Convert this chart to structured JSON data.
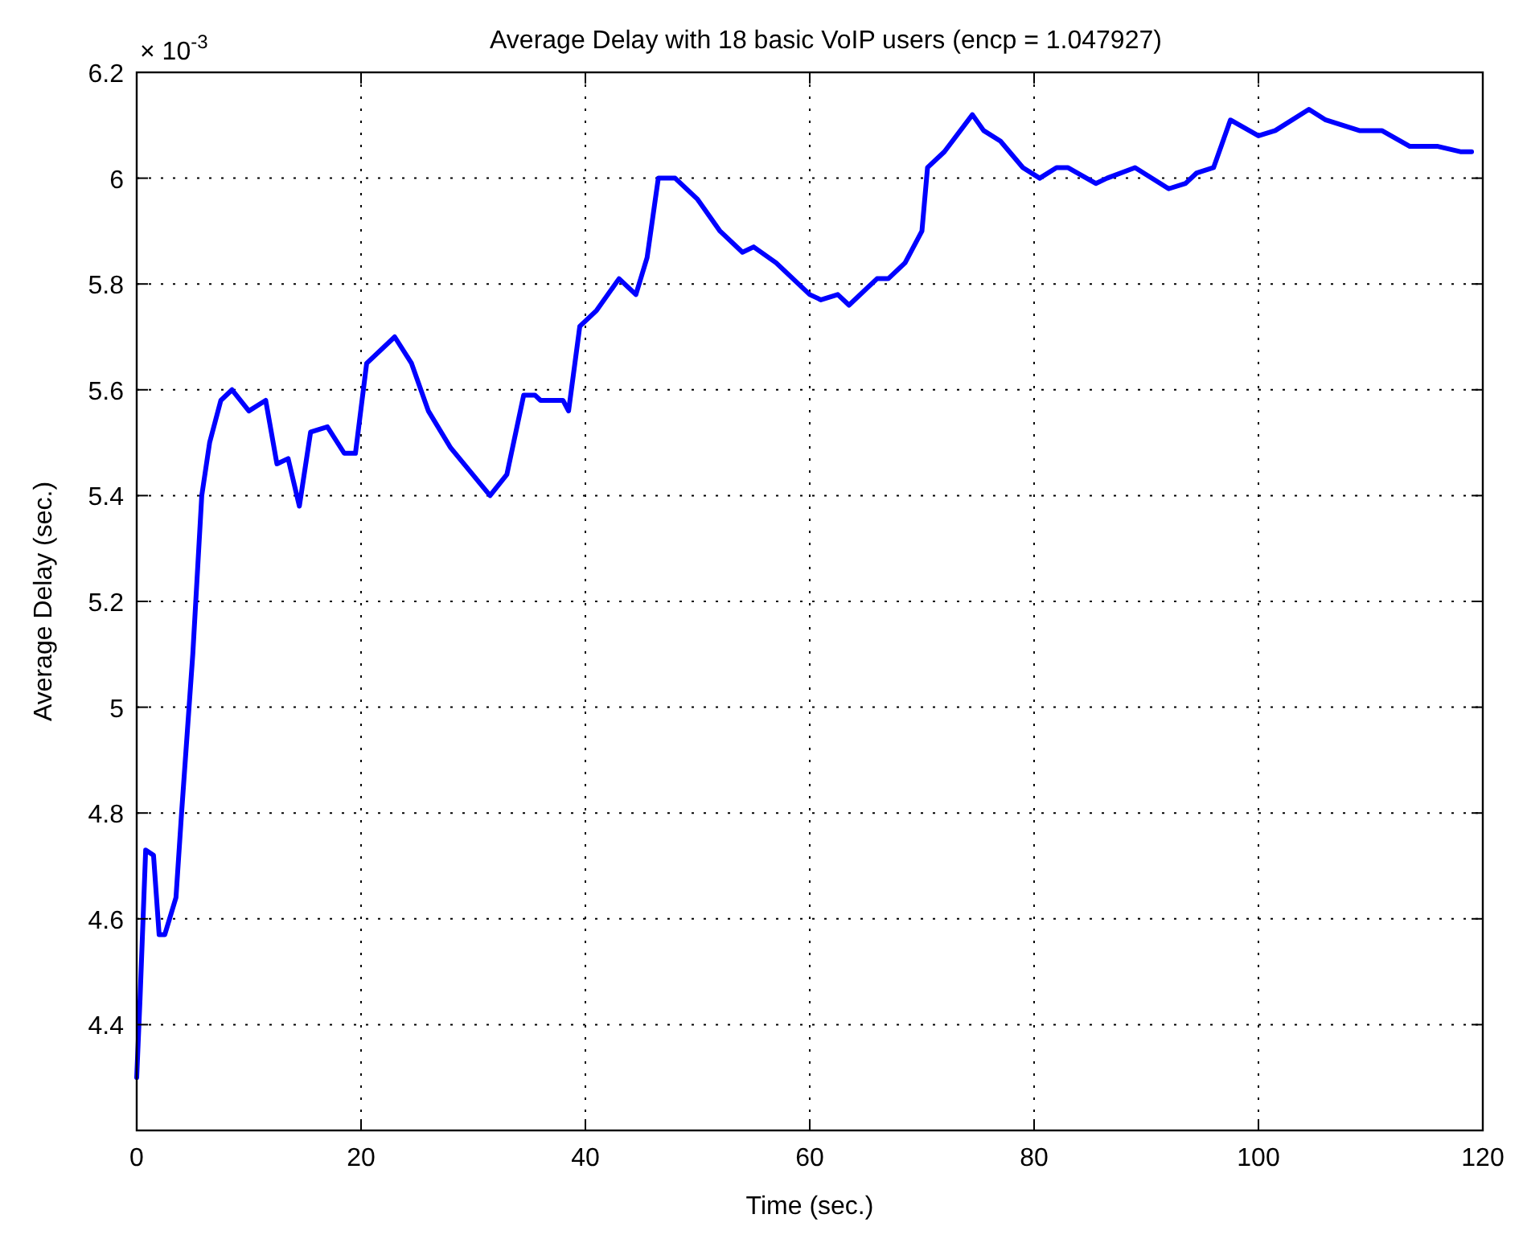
{
  "chart_data": {
    "type": "line",
    "title": "Average Delay with 18 basic VoIP users (encp = 1.047927)",
    "xlabel": "Time (sec.)",
    "ylabel": "Average Delay (sec.)",
    "annotations": [
      "× 10$^{-3}$"
    ],
    "series": [
      {
        "color": "#0000ff",
        "x": [
          0,
          0.3,
          0.8,
          1.5,
          2,
          2.5,
          3.5,
          4,
          5,
          5.8,
          6.5,
          7.5,
          8.5,
          10,
          11.5,
          12.5,
          13.5,
          14.5,
          15.5,
          17,
          18.5,
          19.5,
          20.5,
          23,
          24.5,
          26,
          28,
          31.5,
          33,
          34.5,
          35.5,
          36,
          38,
          38.5,
          39.5,
          41,
          43,
          44.5,
          45.5,
          46.5,
          48,
          50,
          52,
          54,
          55,
          57,
          60,
          61,
          62.5,
          63.5,
          66,
          67,
          68.5,
          70,
          70.5,
          72,
          74.5,
          75.5,
          77,
          79,
          80.5,
          82,
          83,
          85.5,
          86.5,
          89,
          92,
          93.5,
          94.5,
          96,
          97.5,
          100,
          101.5,
          104.5,
          106,
          109,
          111,
          113.5,
          116,
          118,
          119
        ],
        "values": [
          4.3,
          4.45,
          4.73,
          4.72,
          4.57,
          4.57,
          4.64,
          4.8,
          5.1,
          5.4,
          5.5,
          5.58,
          5.6,
          5.56,
          5.58,
          5.46,
          5.47,
          5.38,
          5.52,
          5.53,
          5.48,
          5.48,
          5.65,
          5.7,
          5.65,
          5.56,
          5.49,
          5.4,
          5.44,
          5.59,
          5.59,
          5.58,
          5.58,
          5.56,
          5.72,
          5.75,
          5.81,
          5.78,
          5.85,
          6.0,
          6.0,
          5.96,
          5.9,
          5.86,
          5.87,
          5.84,
          5.78,
          5.77,
          5.78,
          5.76,
          5.81,
          5.81,
          5.84,
          5.9,
          6.02,
          6.05,
          6.12,
          6.09,
          6.07,
          6.02,
          6.0,
          6.02,
          6.02,
          5.99,
          6.0,
          6.02,
          5.98,
          5.99,
          6.01,
          6.02,
          6.11,
          6.08,
          6.09,
          6.13,
          6.11,
          6.09,
          6.09,
          6.06,
          6.06,
          6.05,
          6.05
        ]
      }
    ],
    "xlim": [
      0,
      120
    ],
    "xticks": [
      0,
      20,
      40,
      60,
      80,
      100,
      120
    ],
    "ylim": [
      4.2,
      6.2
    ],
    "yticks": [
      {
        "value": 4.2,
        "label": null
      },
      4.4,
      4.6,
      4.8,
      5,
      5.2,
      5.4,
      5.6,
      5.8,
      6,
      6.2
    ],
    "grid": true,
    "marker": "none",
    "line_style": "solid"
  }
}
